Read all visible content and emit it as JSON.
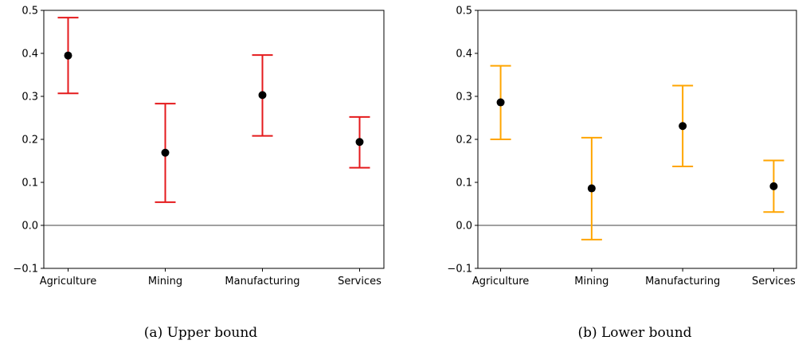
{
  "chart_data": [
    {
      "type": "errorbar",
      "caption": "(a) Upper bound",
      "color": "#e41a1c",
      "categories": [
        "Agriculture",
        "Mining",
        "Manufacturing",
        "Services"
      ],
      "values": [
        0.395,
        0.169,
        0.303,
        0.194
      ],
      "lower": [
        0.307,
        0.054,
        0.208,
        0.134
      ],
      "upper": [
        0.483,
        0.283,
        0.396,
        0.252
      ],
      "ylim": [
        -0.1,
        0.5
      ],
      "yticks": [
        -0.1,
        0.0,
        0.1,
        0.2,
        0.3,
        0.4,
        0.5
      ],
      "ytick_labels": [
        "−0.1",
        "0.0",
        "0.1",
        "0.2",
        "0.3",
        "0.4",
        "0.5"
      ],
      "zero_line": true,
      "grid": false
    },
    {
      "type": "errorbar",
      "caption": "(b) Lower bound",
      "color": "#ffa500",
      "categories": [
        "Agriculture",
        "Mining",
        "Manufacturing",
        "Services"
      ],
      "values": [
        0.286,
        0.086,
        0.231,
        0.091
      ],
      "lower": [
        0.2,
        -0.033,
        0.137,
        0.031
      ],
      "upper": [
        0.371,
        0.204,
        0.325,
        0.151
      ],
      "ylim": [
        -0.1,
        0.5
      ],
      "yticks": [
        -0.1,
        0.0,
        0.1,
        0.2,
        0.3,
        0.4,
        0.5
      ],
      "ytick_labels": [
        "−0.1",
        "0.0",
        "0.1",
        "0.2",
        "0.3",
        "0.4",
        "0.5"
      ],
      "zero_line": true,
      "grid": false
    }
  ]
}
